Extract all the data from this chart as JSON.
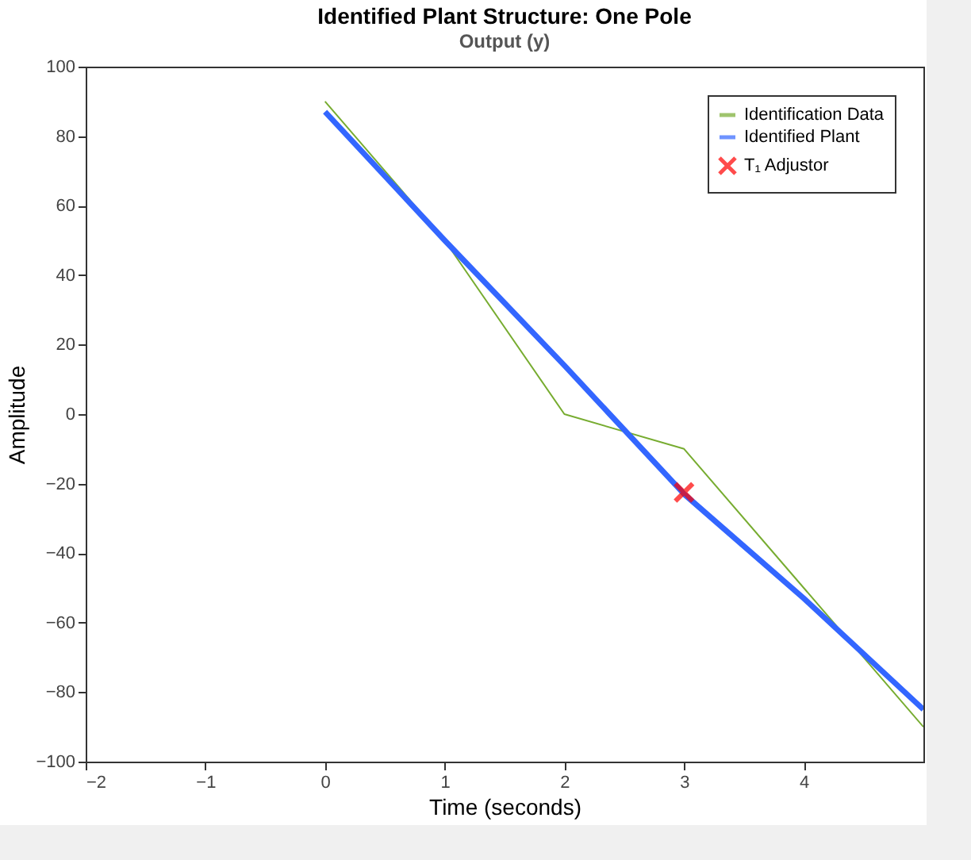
{
  "chart_data": {
    "type": "line",
    "title": "Identified Plant Structure: One Pole",
    "subtitle": "Output (y)",
    "xlabel": "Time (seconds)",
    "ylabel": "Amplitude",
    "xlim": [
      -2,
      5
    ],
    "xticks": [
      -2,
      -1,
      0,
      1,
      2,
      3,
      4
    ],
    "ylim": [
      -100,
      100
    ],
    "yticks": [
      -100,
      -80,
      -60,
      -40,
      -20,
      0,
      20,
      40,
      60,
      80,
      100
    ],
    "grid": false,
    "legend": "top right",
    "series": [
      {
        "name": "Identification Data",
        "color": "#77ac30",
        "x": [
          0,
          1,
          2,
          3,
          4,
          5
        ],
        "values": [
          90,
          50,
          0,
          -10,
          -50,
          -90
        ]
      },
      {
        "name": "Identified Plant",
        "color": "#3366ff",
        "x": [
          0,
          1,
          2,
          3,
          4,
          5
        ],
        "values": [
          87,
          50,
          14,
          -23,
          -53,
          -85
        ]
      },
      {
        "name": "T₁ Adjustor",
        "color": "#ff0000",
        "type": "scatter",
        "marker": "cross",
        "x": [
          3
        ],
        "values": [
          -22.5
        ]
      }
    ]
  }
}
